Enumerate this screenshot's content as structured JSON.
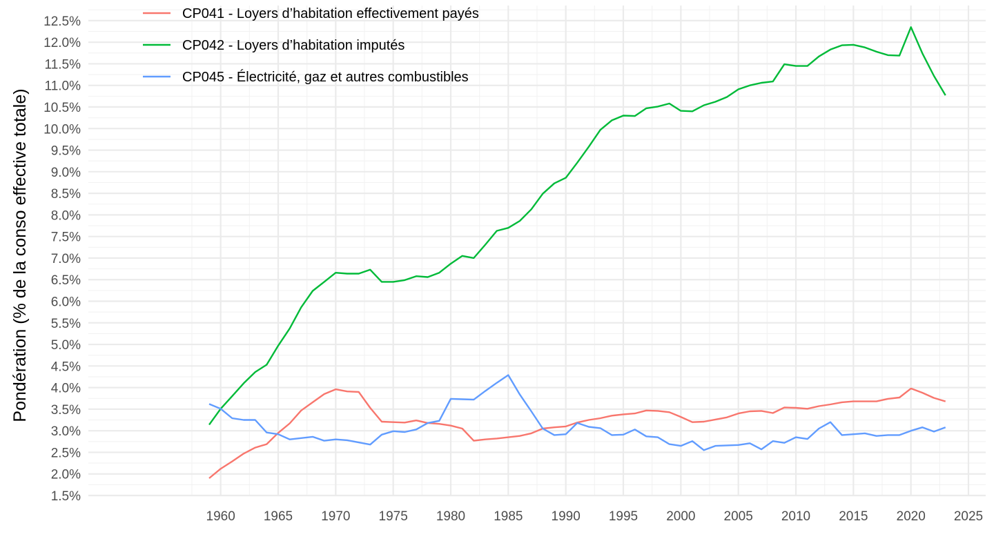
{
  "chart_data": {
    "type": "line",
    "title": "",
    "xlabel": "",
    "ylabel": "Pondération (% de la conso effective totale)",
    "xlim": [
      1948.5,
      2026.5
    ],
    "ylim": [
      1.5,
      12.85
    ],
    "x_ticks": [
      1960,
      1965,
      1970,
      1975,
      1980,
      1985,
      1990,
      1995,
      2000,
      2005,
      2010,
      2015,
      2020,
      2025
    ],
    "y_ticks": [
      "1.5%",
      "2.0%",
      "2.5%",
      "3.0%",
      "3.5%",
      "4.0%",
      "4.5%",
      "5.0%",
      "5.5%",
      "6.0%",
      "6.5%",
      "7.0%",
      "7.5%",
      "8.0%",
      "8.5%",
      "9.0%",
      "9.5%",
      "10.0%",
      "10.5%",
      "11.0%",
      "11.5%",
      "12.0%",
      "12.5%"
    ],
    "y_tick_values": [
      1.5,
      2.0,
      2.5,
      3.0,
      3.5,
      4.0,
      4.5,
      5.0,
      5.5,
      6.0,
      6.5,
      7.0,
      7.5,
      8.0,
      8.5,
      9.0,
      9.5,
      10.0,
      10.5,
      11.0,
      11.5,
      12.0,
      12.5
    ],
    "grid": true,
    "legend_position": "top-left",
    "x": [
      1959,
      1960,
      1961,
      1962,
      1963,
      1964,
      1965,
      1966,
      1967,
      1968,
      1969,
      1970,
      1971,
      1972,
      1973,
      1974,
      1975,
      1976,
      1977,
      1978,
      1979,
      1980,
      1981,
      1982,
      1983,
      1984,
      1985,
      1986,
      1987,
      1988,
      1989,
      1990,
      1991,
      1992,
      1993,
      1994,
      1995,
      1996,
      1997,
      1998,
      1999,
      2000,
      2001,
      2002,
      2003,
      2004,
      2005,
      2006,
      2007,
      2008,
      2009,
      2010,
      2011,
      2012,
      2013,
      2014,
      2015,
      2016,
      2017,
      2018,
      2019,
      2020,
      2021,
      2022,
      2023
    ],
    "series": [
      {
        "name": "CP041 - Loyers d’habitation effectivement payés",
        "color": "#F8766D",
        "values": [
          1.9,
          2.12,
          2.29,
          2.47,
          2.61,
          2.69,
          2.95,
          3.17,
          3.47,
          3.66,
          3.85,
          3.96,
          3.91,
          3.9,
          3.53,
          3.21,
          3.2,
          3.19,
          3.24,
          3.18,
          3.16,
          3.12,
          3.05,
          2.77,
          2.8,
          2.82,
          2.85,
          2.88,
          2.94,
          3.05,
          3.08,
          3.1,
          3.19,
          3.25,
          3.29,
          3.35,
          3.38,
          3.4,
          3.47,
          3.46,
          3.43,
          3.32,
          3.2,
          3.21,
          3.26,
          3.31,
          3.4,
          3.45,
          3.46,
          3.41,
          3.54,
          3.53,
          3.51,
          3.57,
          3.61,
          3.66,
          3.68,
          3.68,
          3.68,
          3.74,
          3.77,
          3.98,
          3.88,
          3.76,
          3.68
        ]
      },
      {
        "name": "CP042 - Loyers d’habitation imputés",
        "color": "#00BA38",
        "values": [
          3.14,
          3.51,
          3.8,
          4.1,
          4.36,
          4.53,
          4.97,
          5.37,
          5.86,
          6.24,
          6.45,
          6.66,
          6.64,
          6.64,
          6.73,
          6.45,
          6.45,
          6.49,
          6.58,
          6.56,
          6.66,
          6.87,
          7.05,
          7.0,
          7.31,
          7.63,
          7.7,
          7.86,
          8.13,
          8.49,
          8.73,
          8.86,
          9.21,
          9.58,
          9.97,
          10.19,
          10.3,
          10.29,
          10.47,
          10.51,
          10.58,
          10.41,
          10.4,
          10.54,
          10.62,
          10.73,
          10.91,
          11.0,
          11.06,
          11.09,
          11.49,
          11.45,
          11.45,
          11.67,
          11.83,
          11.93,
          11.94,
          11.88,
          11.78,
          11.7,
          11.69,
          12.35,
          11.74,
          11.22,
          10.77
        ]
      },
      {
        "name": "CP045 - Électricité, gaz et autres combustibles",
        "color": "#619CFF",
        "values": [
          3.62,
          3.51,
          3.29,
          3.25,
          3.25,
          2.96,
          2.92,
          2.8,
          2.83,
          2.86,
          2.77,
          2.8,
          2.78,
          2.73,
          2.68,
          2.91,
          2.99,
          2.97,
          3.03,
          3.18,
          3.23,
          3.74,
          3.73,
          3.72,
          3.92,
          4.11,
          4.29,
          3.84,
          3.45,
          3.05,
          2.9,
          2.92,
          3.18,
          3.09,
          3.06,
          2.9,
          2.91,
          3.03,
          2.87,
          2.85,
          2.69,
          2.65,
          2.76,
          2.55,
          2.65,
          2.66,
          2.67,
          2.71,
          2.57,
          2.76,
          2.72,
          2.85,
          2.81,
          3.05,
          3.2,
          2.9,
          2.92,
          2.94,
          2.88,
          2.9,
          2.9,
          3.0,
          3.08,
          2.98,
          3.08
        ]
      }
    ]
  }
}
